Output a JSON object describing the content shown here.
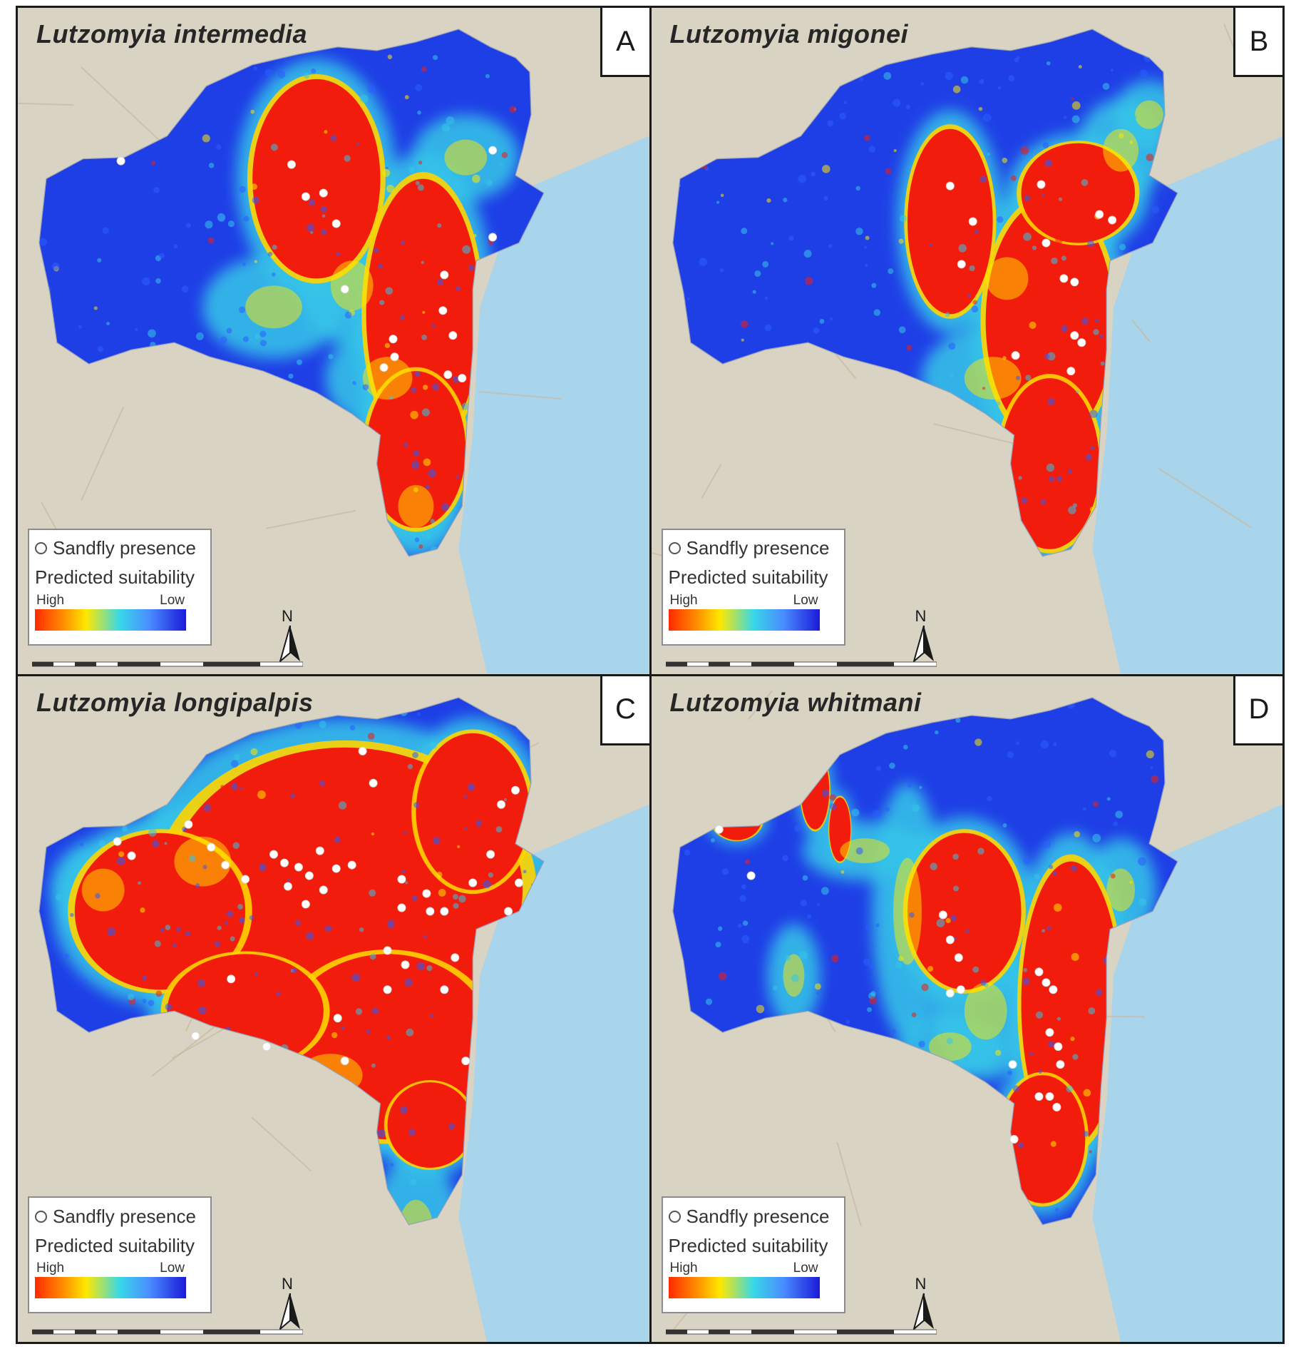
{
  "panels": [
    {
      "letter": "A",
      "species": "Lutzomyia intermedia",
      "pattern": "east"
    },
    {
      "letter": "B",
      "species": "Lutzomyia migonei",
      "pattern": "coast"
    },
    {
      "letter": "C",
      "species": "Lutzomyia longipalpis",
      "pattern": "wide"
    },
    {
      "letter": "D",
      "species": "Lutzomyia whitmani",
      "pattern": "patchy"
    }
  ],
  "legend": {
    "presence_label": "Sandfly presence",
    "suitability_label": "Predicted suitability",
    "high_label": "High",
    "low_label": "Low",
    "gradient_colors": [
      "#ff2a00",
      "#ff8a00",
      "#ffe800",
      "#38d8e8",
      "#4a8cff",
      "#1a1ad8"
    ]
  },
  "north_label": "N",
  "colors": {
    "basemap": "#d8d3c2",
    "sea": "#a8d4ec",
    "low": "#1f3fe6",
    "mid": "#35c6e8",
    "high": "#f21c0c",
    "presence_dot": "#ffffff"
  }
}
